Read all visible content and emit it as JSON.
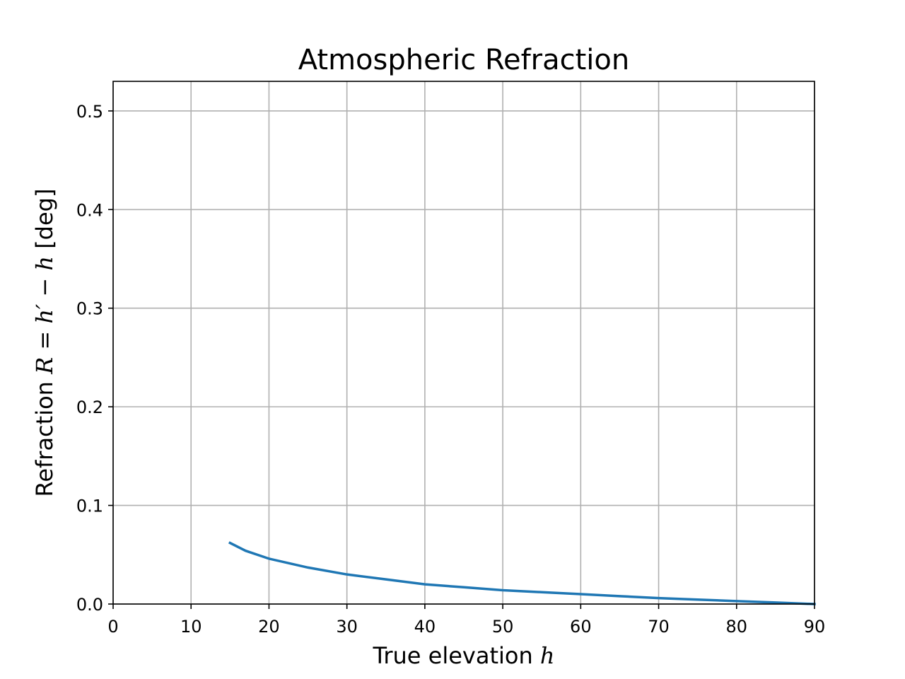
{
  "chart_data": {
    "type": "line",
    "title": "Atmospheric Refraction",
    "xlabel": {
      "text": "True elevation ",
      "math": "h"
    },
    "ylabel": {
      "prefix": "Refraction ",
      "math": "R = h′ − h",
      "suffix": " [deg]"
    },
    "xlim": [
      0,
      90
    ],
    "ylim": [
      0,
      0.53
    ],
    "xticks": [
      0,
      10,
      20,
      30,
      40,
      50,
      60,
      70,
      80,
      90
    ],
    "yticks": [
      0.0,
      0.1,
      0.2,
      0.3,
      0.4,
      0.5
    ],
    "xtick_labels": [
      "0",
      "10",
      "20",
      "30",
      "40",
      "50",
      "60",
      "70",
      "80",
      "90"
    ],
    "ytick_labels": [
      "0.0",
      "0.1",
      "0.2",
      "0.3",
      "0.4",
      "0.5"
    ],
    "grid": true,
    "series": [
      {
        "color": "#1f77b4",
        "x": [
          15,
          17,
          20,
          25,
          30,
          35,
          40,
          45,
          50,
          55,
          60,
          65,
          70,
          75,
          80,
          85,
          90
        ],
        "values": [
          0.062,
          0.054,
          0.046,
          0.037,
          0.03,
          0.025,
          0.02,
          0.017,
          0.014,
          0.012,
          0.01,
          0.008,
          0.006,
          0.0045,
          0.003,
          0.0015,
          0.0
        ]
      }
    ]
  }
}
